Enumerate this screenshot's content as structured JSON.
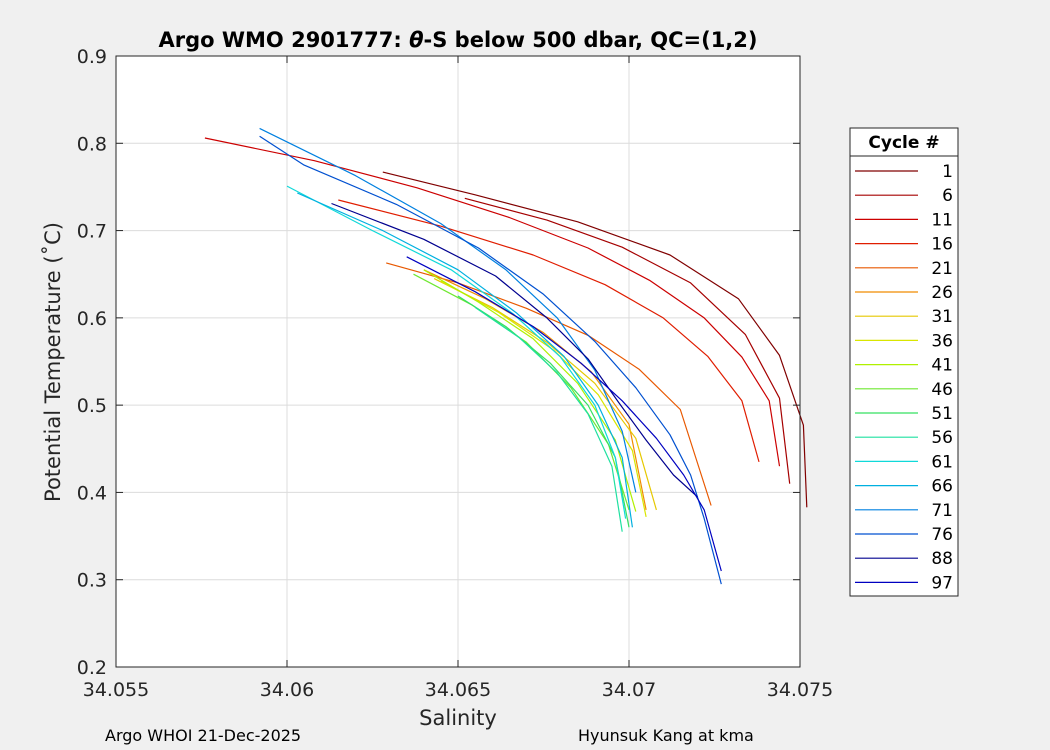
{
  "chart_data": {
    "type": "line",
    "title_parts": [
      "Argo WMO 2901777: ",
      "θ",
      "-S below 500 dbar,  QC=(1,2)"
    ],
    "xlabel": "Salinity",
    "ylabel_parts": [
      "Potential Temperature (",
      "˚",
      "C)"
    ],
    "xlim": [
      34.055,
      34.075
    ],
    "ylim": [
      0.2,
      0.9
    ],
    "xticks": [
      34.055,
      34.06,
      34.065,
      34.07,
      34.075
    ],
    "xtick_labels": [
      "34.055",
      "34.06",
      "34.065",
      "34.07",
      "34.075"
    ],
    "yticks": [
      0.2,
      0.3,
      0.4,
      0.5,
      0.6,
      0.7,
      0.8,
      0.9
    ],
    "ytick_labels": [
      "0.2",
      "0.3",
      "0.4",
      "0.5",
      "0.6",
      "0.7",
      "0.8",
      "0.9"
    ],
    "grid": true,
    "legend_title": "Cycle #",
    "legend_position": "right-outside",
    "legend_entries": [
      "1",
      "6",
      "11",
      "16",
      "21",
      "26",
      "31",
      "36",
      "41",
      "46",
      "51",
      "56",
      "61",
      "66",
      "71",
      "76",
      "88",
      "97"
    ],
    "legend_colors": [
      "#800000",
      "#a50000",
      "#cc0000",
      "#e01d00",
      "#e85800",
      "#f08c00",
      "#e6c800",
      "#d9e600",
      "#b0f000",
      "#6fe830",
      "#35e060",
      "#1fe0a0",
      "#10d9d9",
      "#00b0e0",
      "#0080e0",
      "#0050d0",
      "#00008f",
      "#0000c0"
    ],
    "series": [
      {
        "name": "1",
        "color": "#800000",
        "x": [
          34.0628,
          34.0655,
          34.0685,
          34.0712,
          34.0732,
          34.0744,
          34.0751,
          34.0752
        ],
        "y": [
          0.767,
          0.741,
          0.71,
          0.672,
          0.622,
          0.557,
          0.477,
          0.383
        ]
      },
      {
        "name": "6",
        "color": "#a50000",
        "x": [
          34.0652,
          34.0676,
          34.0698,
          34.0718,
          34.0734,
          34.0744,
          34.0747
        ],
        "y": [
          0.737,
          0.712,
          0.681,
          0.64,
          0.581,
          0.508,
          0.41
        ]
      },
      {
        "name": "11",
        "color": "#cc0000",
        "x": [
          34.0576,
          34.0608,
          34.0638,
          34.0665,
          34.0688,
          34.0706,
          34.0722,
          34.0733,
          34.0741,
          34.0744
        ],
        "y": [
          0.806,
          0.78,
          0.749,
          0.715,
          0.68,
          0.643,
          0.6,
          0.555,
          0.505,
          0.43
        ]
      },
      {
        "name": "16",
        "color": "#e01d00",
        "x": [
          34.0615,
          34.0645,
          34.0672,
          34.0693,
          34.071,
          34.0723,
          34.0733,
          34.0738
        ],
        "y": [
          0.735,
          0.705,
          0.672,
          0.638,
          0.6,
          0.556,
          0.505,
          0.435
        ]
      },
      {
        "name": "21",
        "color": "#e85800",
        "x": [
          34.0629,
          34.065,
          34.067,
          34.0688,
          34.0703,
          34.0715,
          34.0724
        ],
        "y": [
          0.663,
          0.64,
          0.611,
          0.58,
          0.541,
          0.495,
          0.385
        ]
      },
      {
        "name": "26",
        "color": "#f08c00",
        "x": [
          34.064,
          34.0658,
          34.0675,
          34.0689,
          34.07,
          34.0705
        ],
        "y": [
          0.655,
          0.622,
          0.583,
          0.538,
          0.478,
          0.38
        ]
      },
      {
        "name": "31",
        "color": "#e6c800",
        "x": [
          34.0643,
          34.066,
          34.0676,
          34.069,
          34.0702,
          34.0708
        ],
        "y": [
          0.645,
          0.612,
          0.572,
          0.525,
          0.462,
          0.38
        ]
      },
      {
        "name": "36",
        "color": "#d9e600",
        "x": [
          34.0645,
          34.0662,
          34.0678,
          34.0691,
          34.0701,
          34.0705
        ],
        "y": [
          0.642,
          0.606,
          0.563,
          0.512,
          0.448,
          0.372
        ]
      },
      {
        "name": "41",
        "color": "#b0f000",
        "x": [
          34.064,
          34.0656,
          34.0672,
          34.0685,
          34.0696,
          34.0702
        ],
        "y": [
          0.655,
          0.618,
          0.576,
          0.525,
          0.46,
          0.378
        ]
      },
      {
        "name": "46",
        "color": "#6fe830",
        "x": [
          34.0637,
          34.0654,
          34.067,
          34.0683,
          34.0694,
          34.07
        ],
        "y": [
          0.65,
          0.615,
          0.572,
          0.52,
          0.455,
          0.38
        ]
      },
      {
        "name": "51",
        "color": "#35e060",
        "x": [
          34.065,
          34.0664,
          34.0677,
          34.0688,
          34.0696,
          34.07
        ],
        "y": [
          0.625,
          0.59,
          0.548,
          0.5,
          0.44,
          0.36
        ]
      },
      {
        "name": "56",
        "color": "#1fe0a0",
        "x": [
          34.0655,
          34.0668,
          34.0679,
          34.0688,
          34.0695,
          34.0698
        ],
        "y": [
          0.612,
          0.577,
          0.537,
          0.49,
          0.43,
          0.355
        ]
      },
      {
        "name": "61",
        "color": "#10d9d9",
        "x": [
          34.06,
          34.0625,
          34.0648,
          34.0666,
          34.068,
          34.069,
          34.0696,
          34.0699
        ],
        "y": [
          0.751,
          0.7,
          0.655,
          0.605,
          0.555,
          0.5,
          0.44,
          0.37
        ]
      },
      {
        "name": "66",
        "color": "#00b0e0",
        "x": [
          34.0603,
          34.0628,
          34.065,
          34.0667,
          34.0681,
          34.0691,
          34.0698,
          34.0701
        ],
        "y": [
          0.743,
          0.7,
          0.655,
          0.606,
          0.556,
          0.5,
          0.44,
          0.36
        ]
      },
      {
        "name": "71",
        "color": "#0080e0",
        "x": [
          34.0592,
          34.062,
          34.0645,
          34.0664,
          34.0679,
          34.069,
          34.0698,
          34.0702
        ],
        "y": [
          0.817,
          0.763,
          0.708,
          0.655,
          0.6,
          0.54,
          0.47,
          0.4
        ]
      },
      {
        "name": "76",
        "color": "#0050d0",
        "x": [
          34.0592,
          34.0605,
          34.0632,
          34.0656,
          34.0675,
          34.069,
          34.0702,
          34.0712,
          34.0718,
          34.0722,
          34.0727
        ],
        "y": [
          0.808,
          0.775,
          0.73,
          0.68,
          0.627,
          0.573,
          0.52,
          0.466,
          0.42,
          0.37,
          0.295
        ]
      },
      {
        "name": "88",
        "color": "#00008f",
        "x": [
          34.0613,
          34.064,
          34.0661,
          34.0676,
          34.0688,
          34.0697,
          34.0705,
          34.0713,
          34.072
        ],
        "y": [
          0.731,
          0.69,
          0.648,
          0.6,
          0.553,
          0.503,
          0.46,
          0.42,
          0.395
        ]
      },
      {
        "name": "97",
        "color": "#0000c0",
        "x": [
          34.0635,
          34.0655,
          34.0672,
          34.0686,
          34.0698,
          34.0708,
          34.0716,
          34.0722,
          34.0727
        ],
        "y": [
          0.67,
          0.63,
          0.59,
          0.548,
          0.505,
          0.462,
          0.42,
          0.38,
          0.31
        ]
      }
    ]
  },
  "footer": {
    "left": "Argo WHOI 21-Dec-2025",
    "right": "Hyunsuk Kang at kma"
  }
}
